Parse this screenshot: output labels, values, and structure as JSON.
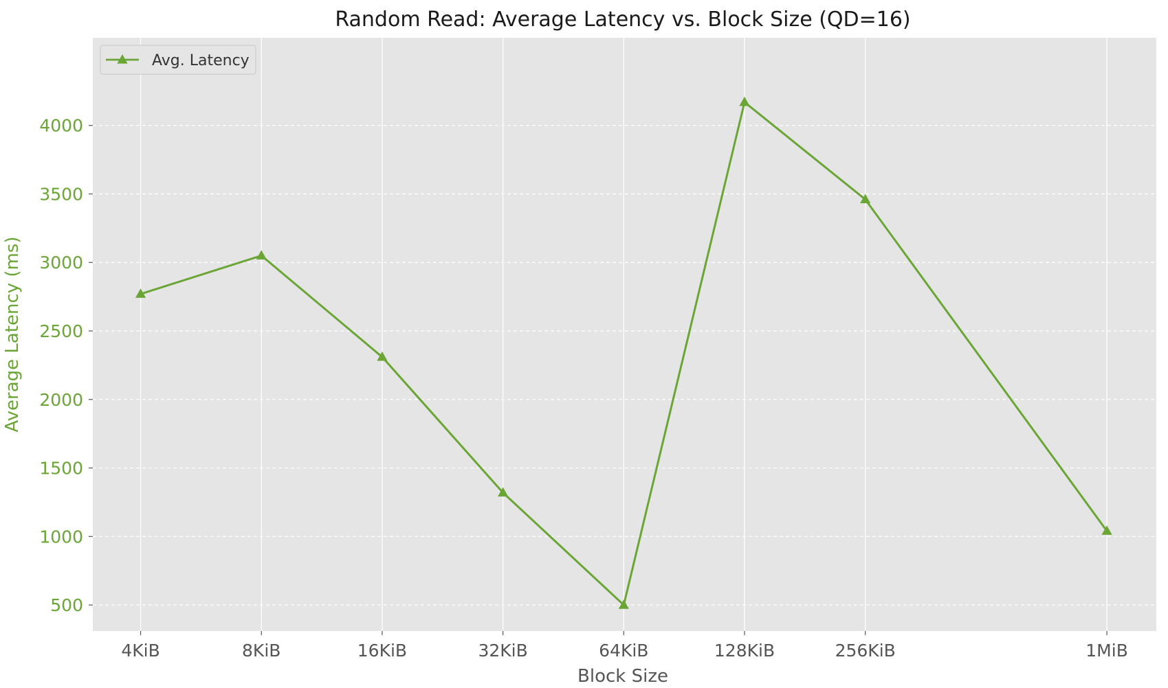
{
  "chart_data": {
    "type": "line",
    "title": "Random Read: Average Latency vs. Block Size (QD=16)",
    "xlabel": "Block Size",
    "ylabel": "Average Latency (ms)",
    "categories": [
      "4KiB",
      "8KiB",
      "16KiB",
      "32KiB",
      "64KiB",
      "128KiB",
      "256KiB",
      "1MiB"
    ],
    "x_positions": [
      4,
      8,
      16,
      32,
      64,
      128,
      256,
      1024
    ],
    "x_scale": "log2",
    "xlim": [
      3.04,
      1360
    ],
    "series": [
      {
        "name": "Avg. Latency",
        "values": [
          2770,
          3050,
          2310,
          1320,
          500,
          4170,
          3460,
          1040
        ],
        "marker": "triangle"
      }
    ],
    "ylim": [
      310,
      4640
    ],
    "yticks": [
      500,
      1000,
      1500,
      2000,
      2500,
      3000,
      3500,
      4000
    ],
    "grid": true,
    "legend_position": "top-left",
    "colors": {
      "series": "#6aa535",
      "ylabel": "#6aa535",
      "plot_background": "#e5e5e5",
      "grid": "#ffffff"
    }
  }
}
